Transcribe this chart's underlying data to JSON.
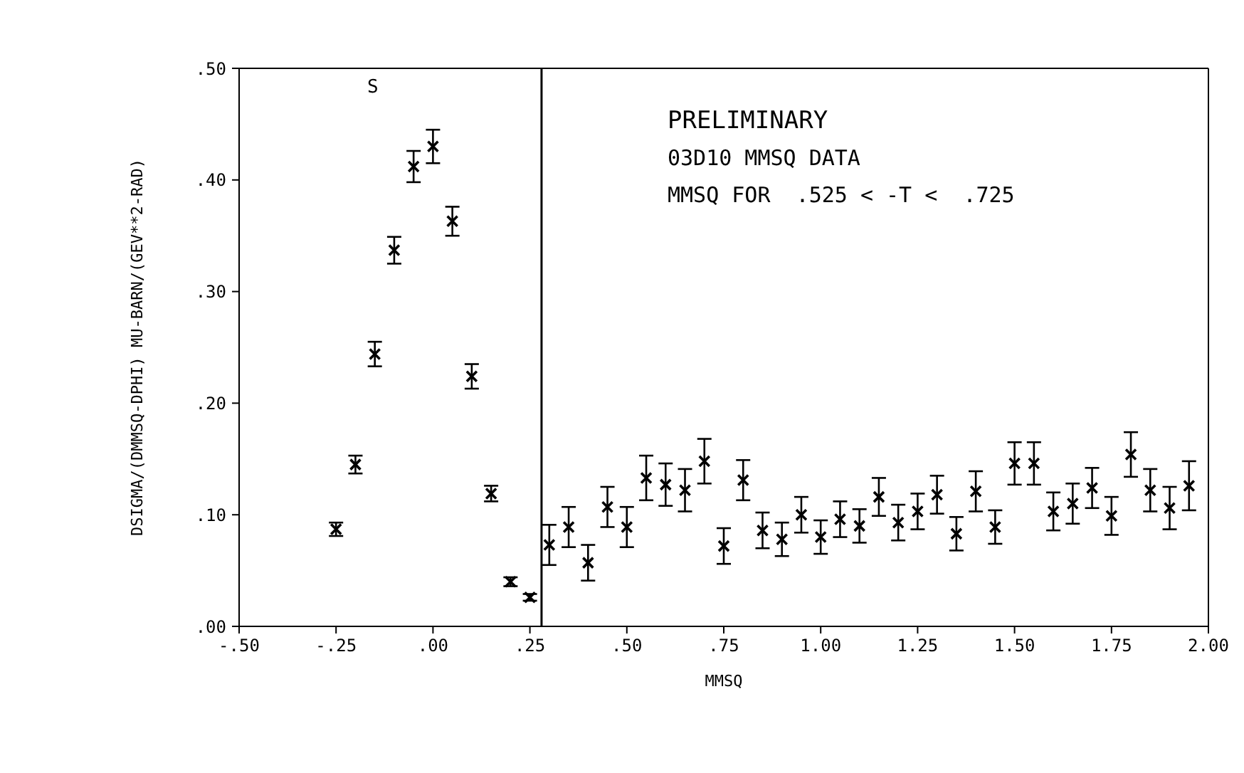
{
  "chart_data": {
    "type": "scatter",
    "title": "PRELIMINARY",
    "subtitle": "03D10 MMSQ DATA",
    "xlabel": "MMSQ",
    "ylabel": "DSIGMA/(DMMSQ-DPHI)     MU-BARN/(GEV**2-RAD)",
    "annotations": [
      "MMSQ FOR  .525 < -T <  .725",
      "S"
    ],
    "x": [
      -0.25,
      -0.2,
      -0.15,
      -0.1,
      -0.05,
      0.0,
      0.05,
      0.1,
      0.15,
      0.2,
      0.25,
      0.3,
      0.35,
      0.4,
      0.45,
      0.5,
      0.55,
      0.6,
      0.65,
      0.7,
      0.75,
      0.8,
      0.85,
      0.9,
      0.95,
      1.0,
      1.05,
      1.1,
      1.15,
      1.2,
      1.25,
      1.3,
      1.35,
      1.4,
      1.45,
      1.5,
      1.55,
      1.6,
      1.65,
      1.7,
      1.75,
      1.8,
      1.85,
      1.9,
      1.95
    ],
    "series": [
      {
        "color": "#000000",
        "values": [
          0.087,
          0.145,
          0.244,
          0.337,
          0.412,
          0.43,
          0.363,
          0.224,
          0.119,
          0.04,
          0.026,
          0.073,
          0.089,
          0.057,
          0.107,
          0.089,
          0.133,
          0.127,
          0.122,
          0.148,
          0.072,
          0.131,
          0.086,
          0.078,
          0.1,
          0.08,
          0.096,
          0.09,
          0.116,
          0.093,
          0.103,
          0.118,
          0.083,
          0.121,
          0.089,
          0.146,
          0.146,
          0.103,
          0.11,
          0.124,
          0.099,
          0.154,
          0.122,
          0.106,
          0.126
        ],
        "errors": [
          0.006,
          0.008,
          0.011,
          0.012,
          0.014,
          0.015,
          0.013,
          0.011,
          0.007,
          0.004,
          0.003,
          0.018,
          0.018,
          0.016,
          0.018,
          0.018,
          0.02,
          0.019,
          0.019,
          0.02,
          0.016,
          0.018,
          0.016,
          0.015,
          0.016,
          0.015,
          0.016,
          0.015,
          0.017,
          0.016,
          0.016,
          0.017,
          0.015,
          0.018,
          0.015,
          0.019,
          0.019,
          0.017,
          0.018,
          0.018,
          0.017,
          0.02,
          0.019,
          0.019,
          0.022
        ]
      }
    ],
    "xlim": [
      -0.5,
      2.0
    ],
    "xticks": [
      {
        "value": -0.5,
        "label": "-.50"
      },
      {
        "value": -0.25,
        "label": "-.25"
      },
      {
        "value": 0,
        "label": ".00"
      },
      {
        "value": 0.25,
        "label": ".25"
      },
      {
        "value": 0.5,
        "label": ".50"
      },
      {
        "value": 0.75,
        "label": ".75"
      },
      {
        "value": 1,
        "label": "1.00"
      },
      {
        "value": 1.25,
        "label": "1.25"
      },
      {
        "value": 1.5,
        "label": "1.50"
      },
      {
        "value": 1.75,
        "label": "1.75"
      },
      {
        "value": 2,
        "label": "2.00"
      }
    ],
    "ylim": [
      0,
      0.5
    ],
    "yticks": [
      {
        "value": 0,
        "label": ".00"
      },
      {
        "value": 0.1,
        "label": ".10"
      },
      {
        "value": 0.2,
        "label": ".20"
      },
      {
        "value": 0.3,
        "label": ".30"
      },
      {
        "value": 0.4,
        "label": ".40"
      },
      {
        "value": 0.5,
        "label": ".50"
      }
    ],
    "ref_lines": [
      {
        "axis": "x",
        "value": 0.28,
        "color": "#000000"
      }
    ],
    "marker": "cross"
  }
}
